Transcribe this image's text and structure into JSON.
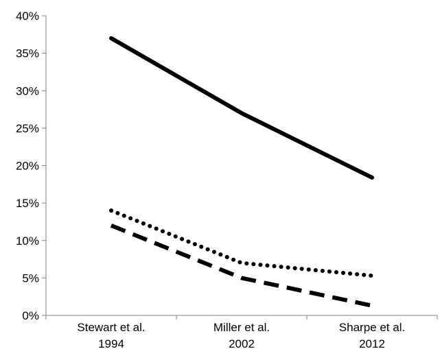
{
  "chart_data": {
    "type": "line",
    "title": "",
    "xlabel": "",
    "ylabel": "",
    "categories": [
      [
        "Stewart et al.",
        "1994"
      ],
      [
        "Miller et al.",
        "2002"
      ],
      [
        "Sharpe et al.",
        "2012"
      ]
    ],
    "ylim": [
      0,
      40
    ],
    "yticks": [
      0,
      5,
      10,
      15,
      20,
      25,
      30,
      35,
      40
    ],
    "ytick_format": "percent",
    "grid": false,
    "legend": "none",
    "series": [
      {
        "style": "solid",
        "color": "#000000",
        "values": [
          37,
          27,
          18.4
        ]
      },
      {
        "style": "dotted",
        "color": "#000000",
        "values": [
          14,
          7,
          5.3
        ]
      },
      {
        "style": "dashed",
        "color": "#000000",
        "values": [
          12,
          5,
          1.3
        ]
      }
    ]
  }
}
